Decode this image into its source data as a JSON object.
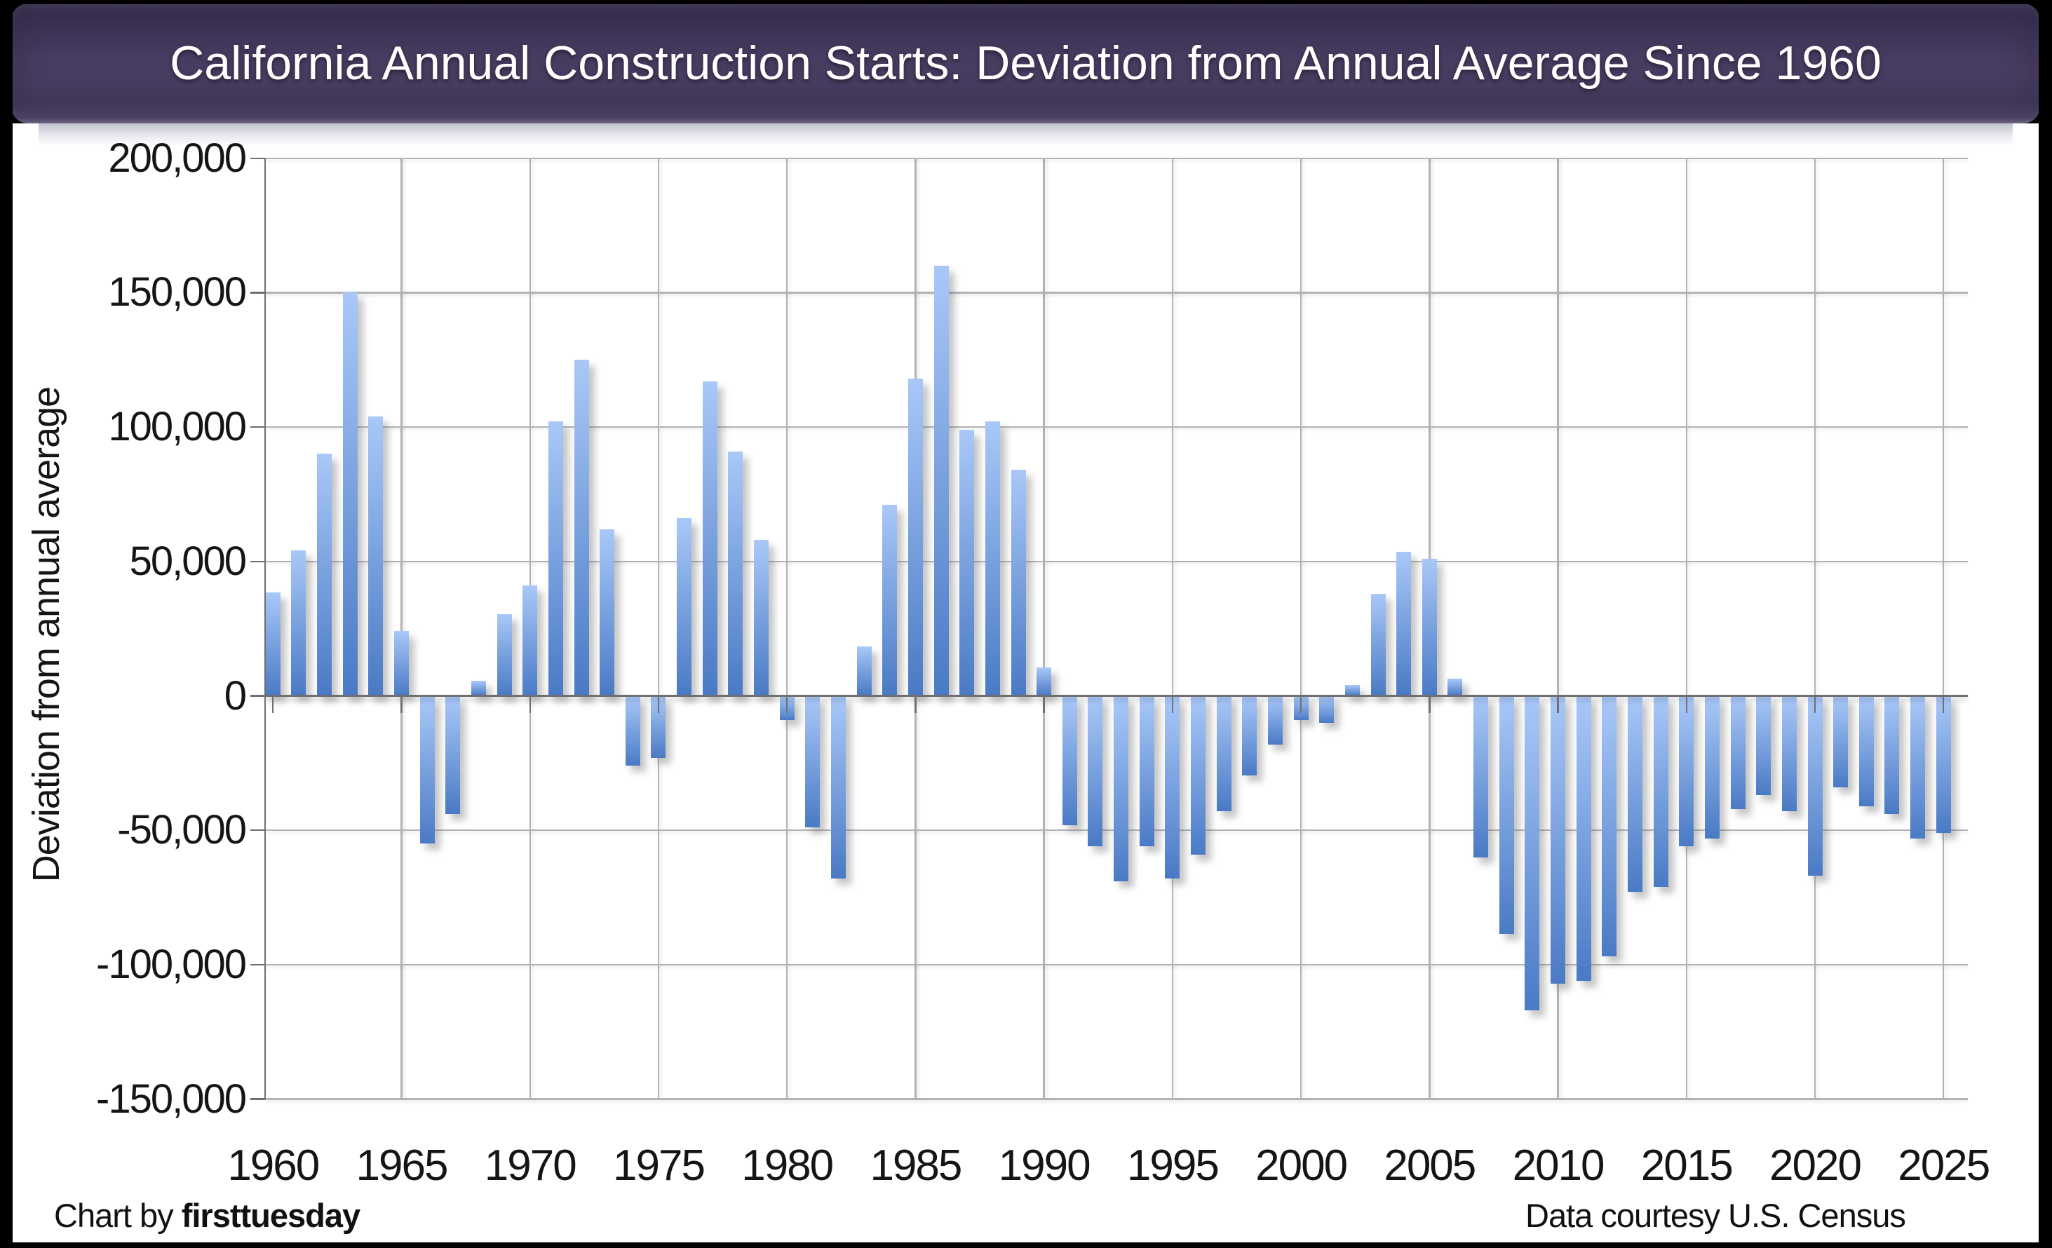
{
  "header": {
    "title": "California Annual Construction Starts: Deviation from Annual Average Since 1960"
  },
  "footer": {
    "credit_prefix": "Chart by ",
    "credit_brand": "firsttuesday",
    "source": "Data courtesy U.S. Census"
  },
  "colors": {
    "bar_gradient_top": "#a9c8f8",
    "bar_gradient_bottom": "#4a7ac5",
    "gridline": "#b2b2b6",
    "axis_line": "#6e6e73",
    "banner_top": "#342a4b",
    "banner_mid": "#473b60",
    "banner_low": "#4a3e63",
    "banner_edge": "#8c81a8",
    "title_text": "#ffffff",
    "frame": "#000000",
    "label_text": "#151515"
  },
  "chart_data": {
    "type": "bar",
    "title": "California Annual Construction Starts: Deviation from Annual Average Since 1960",
    "xlabel": "",
    "ylabel": "Deviation from annual average",
    "ylim": [
      -150000,
      200000
    ],
    "ytick_step": 50000,
    "ytick_values": [
      200000,
      150000,
      100000,
      50000,
      0,
      -50000,
      -100000,
      -150000
    ],
    "ytick_labels": [
      "200,000",
      "150,000",
      "100,000",
      "50,000",
      "0",
      "-50,000",
      "-100,000",
      "-150,000"
    ],
    "xticks": [
      1960,
      1965,
      1970,
      1975,
      1980,
      1985,
      1990,
      1995,
      2000,
      2005,
      2010,
      2015,
      2020,
      2025
    ],
    "grid": true,
    "legend": false,
    "categories": [
      1960,
      1961,
      1962,
      1963,
      1964,
      1965,
      1966,
      1967,
      1968,
      1969,
      1970,
      1971,
      1972,
      1973,
      1974,
      1975,
      1976,
      1977,
      1978,
      1979,
      1980,
      1981,
      1982,
      1983,
      1984,
      1985,
      1986,
      1987,
      1988,
      1989,
      1990,
      1991,
      1992,
      1993,
      1994,
      1995,
      1996,
      1997,
      1998,
      1999,
      2000,
      2001,
      2002,
      2003,
      2004,
      2005,
      2006,
      2007,
      2008,
      2009,
      2010,
      2011,
      2012,
      2013,
      2014,
      2015,
      2016,
      2017,
      2018,
      2019,
      2020,
      2021,
      2022,
      2023,
      2024,
      2025
    ],
    "values": [
      38500,
      54000,
      90000,
      150000,
      104000,
      24000,
      -55000,
      -44000,
      5500,
      30500,
      41000,
      102000,
      125000,
      62000,
      -26000,
      -23000,
      66000,
      117000,
      91000,
      58000,
      -9000,
      -49000,
      -68000,
      18500,
      71000,
      118000,
      160000,
      99000,
      102000,
      84000,
      10500,
      -48000,
      -56000,
      -69000,
      -56000,
      -68000,
      -59000,
      -43000,
      -29500,
      -18000,
      -9000,
      -10000,
      4000,
      38000,
      53500,
      51000,
      6500,
      -60000,
      -88500,
      -117000,
      -107000,
      -106000,
      -97000,
      -73000,
      -71000,
      -56000,
      -53000,
      -42000,
      -37000,
      -43000,
      -67000,
      -34000,
      -41000,
      -44000,
      -53000,
      -51000
    ]
  }
}
